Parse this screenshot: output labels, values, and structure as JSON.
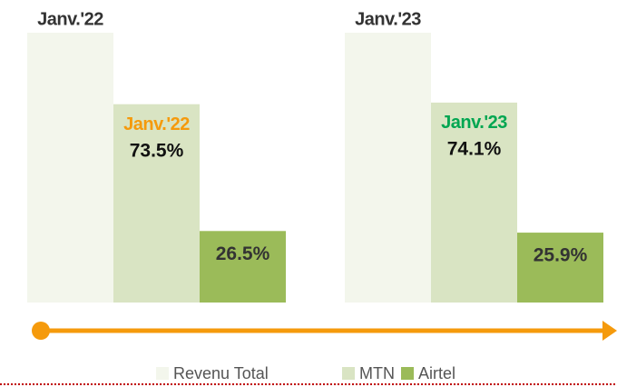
{
  "chart_data": {
    "type": "bar",
    "categories": [
      "Janv.'22",
      "Janv.'23"
    ],
    "category_label_colors": [
      "#f59a0c",
      "#00a651"
    ],
    "series": [
      {
        "name": "Revenu Total",
        "color": "#f3f6ec",
        "values": [
          100,
          100
        ]
      },
      {
        "name": "MTN",
        "color": "#d9e4c3",
        "values": [
          73.5,
          74.1
        ],
        "value_labels": [
          "73.5%",
          "74.1%"
        ]
      },
      {
        "name": "Airtel",
        "color": "#9bbb59",
        "values": [
          26.5,
          25.9
        ],
        "value_labels": [
          "26.5%",
          "25.9%"
        ]
      }
    ],
    "ylim": [
      0,
      100
    ]
  }
}
